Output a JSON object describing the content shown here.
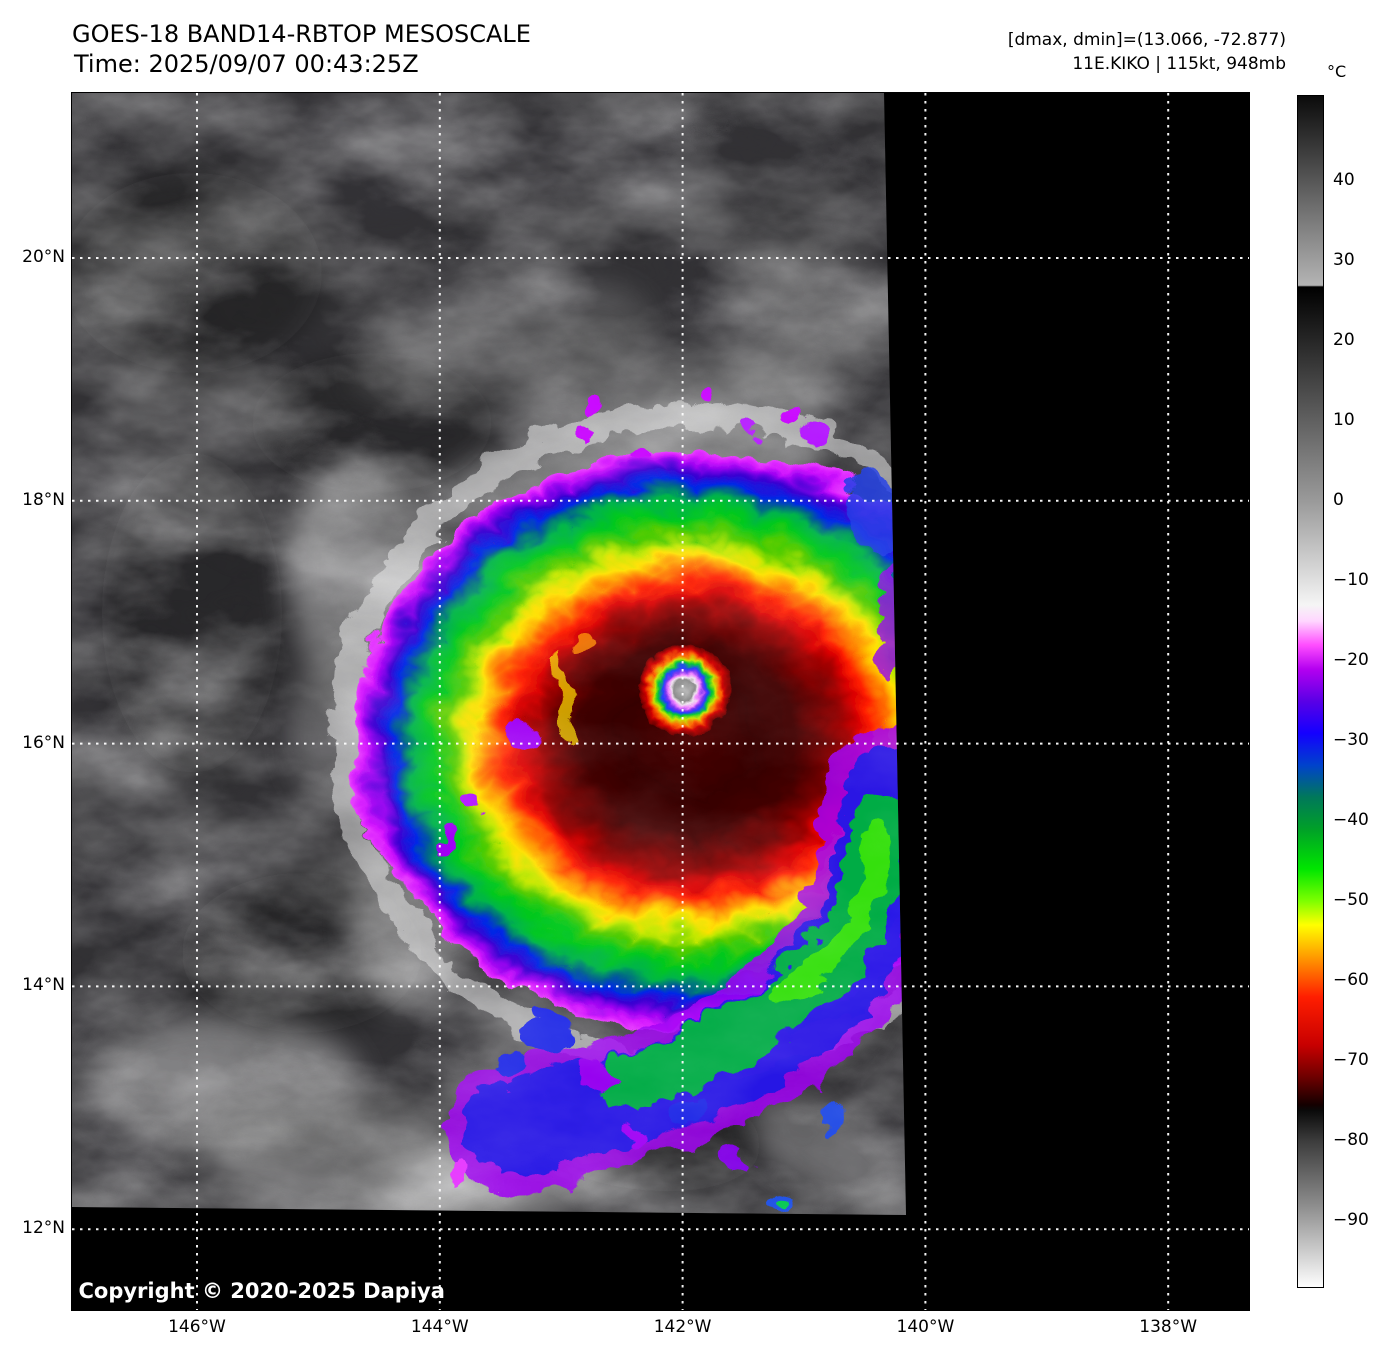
{
  "header": {
    "title": "GOES-18 BAND14-RBTOP MESOSCALE",
    "time": "Time: 2025/09/07 00:43:25Z",
    "dminmax": "[dmax, dmin]=(13.066, -72.877)",
    "storm": "11E.KIKO | 115kt, 948mb"
  },
  "map": {
    "copyright": "Copyright © 2020-2025 Dapiya"
  },
  "axes": {
    "lat_ticks": [
      {
        "label": "20°N",
        "deg": 20
      },
      {
        "label": "18°N",
        "deg": 18
      },
      {
        "label": "16°N",
        "deg": 16
      },
      {
        "label": "14°N",
        "deg": 14
      },
      {
        "label": "12°N",
        "deg": 12
      }
    ],
    "lon_ticks": [
      {
        "label": "146°W",
        "deg": 146
      },
      {
        "label": "144°W",
        "deg": 144
      },
      {
        "label": "142°W",
        "deg": 142
      },
      {
        "label": "140°W",
        "deg": 140
      },
      {
        "label": "138°W",
        "deg": 138
      }
    ]
  },
  "colorbar": {
    "unit": "°C",
    "ticks": [
      {
        "label": "40",
        "value": 40
      },
      {
        "label": "30",
        "value": 30
      },
      {
        "label": "20",
        "value": 20
      },
      {
        "label": "10",
        "value": 10
      },
      {
        "label": "0",
        "value": 0
      },
      {
        "label": "−10",
        "value": -10
      },
      {
        "label": "−20",
        "value": -20
      },
      {
        "label": "−30",
        "value": -30
      },
      {
        "label": "−40",
        "value": -40
      },
      {
        "label": "−50",
        "value": -50
      },
      {
        "label": "−60",
        "value": -60
      },
      {
        "label": "−70",
        "value": -70
      },
      {
        "label": "−80",
        "value": -80
      },
      {
        "label": "−90",
        "value": -90
      }
    ]
  },
  "chart_data": {
    "type": "heatmap",
    "description": "GOES-18 Band-14 infrared brightness temperature mesoscale sector satellite image with RBTOP rainbow enhancement showing Hurricane Kiko; data swath covers the west/center of the map, no-data areas rendered black on the east and south edges.",
    "satellite": "GOES-18",
    "band": "BAND14",
    "enhancement": "RBTOP",
    "sector": "MESOSCALE",
    "time_utc": "2025/09/07 00:43:25Z",
    "storm": {
      "id": "11E",
      "name": "KIKO",
      "intensity_kt": 115,
      "min_pressure_mb": 948
    },
    "dmax_c": 13.066,
    "dmin_c": -72.877,
    "axes": {
      "lon_ticks_degW": [
        146,
        144,
        142,
        140,
        138
      ],
      "lat_ticks_degN": [
        20,
        18,
        16,
        14,
        12
      ],
      "lon_range_degW": [
        147.0,
        137.3
      ],
      "lat_range_degN": [
        11.3,
        21.4
      ],
      "grid": "white dotted graticule every 2 degrees"
    },
    "storm_center_estimate": {
      "lat_degN": 16.46,
      "lon_degW": 142.0
    },
    "colorbar": {
      "unit": "°C",
      "orientation": "vertical-right",
      "tick_values_c": [
        40,
        30,
        20,
        10,
        0,
        -10,
        -20,
        -30,
        -40,
        -50,
        -60,
        -70,
        -80,
        -90
      ],
      "range_c": [
        50.8,
        -98.4
      ],
      "palette_anchors": [
        [
          50.8,
          "#0a0a0a"
        ],
        [
          27.0,
          "#b4b4b4"
        ],
        [
          26.8,
          "#000000"
        ],
        [
          0.0,
          "#9a9a9a"
        ],
        [
          -13,
          "#f5f5f5"
        ],
        [
          -15,
          "#ffd6ff"
        ],
        [
          -18,
          "#ff4dff"
        ],
        [
          -21,
          "#b400f0"
        ],
        [
          -25,
          "#5a00e6"
        ],
        [
          -29,
          "#1400ff"
        ],
        [
          -33,
          "#0042cc"
        ],
        [
          -37,
          "#00785a"
        ],
        [
          -41,
          "#00a028"
        ],
        [
          -46,
          "#00e600"
        ],
        [
          -50,
          "#7dff00"
        ],
        [
          -53,
          "#ffff00"
        ],
        [
          -57,
          "#ff9b00"
        ],
        [
          -62,
          "#ff1e00"
        ],
        [
          -68,
          "#c80000"
        ],
        [
          -72,
          "#6e0000"
        ],
        [
          -75.5,
          "#140000"
        ],
        [
          -76.2,
          "#0a0a0a"
        ],
        [
          -80,
          "#3c3c3c"
        ],
        [
          -88,
          "#8c8c8c"
        ],
        [
          -98.4,
          "#ffffff"
        ]
      ]
    }
  }
}
